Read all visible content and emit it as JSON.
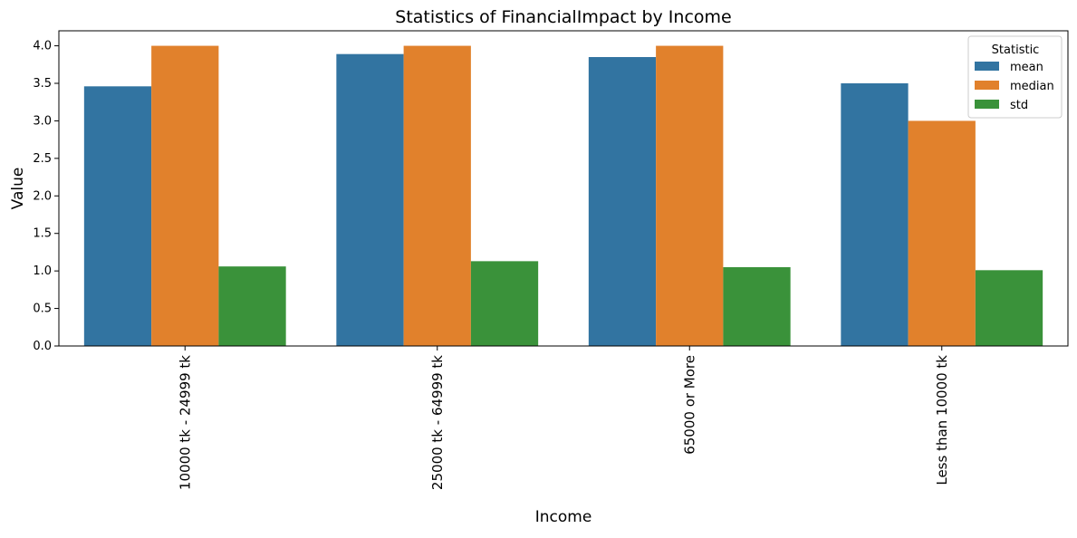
{
  "chart_data": {
    "type": "bar",
    "title": "Statistics of FinancialImpact by Income",
    "xlabel": "Income",
    "ylabel": "Value",
    "categories": [
      "10000 tk - 24999 tk",
      "25000 tk - 64999 tk",
      "65000 or More",
      "Less than 10000 tk"
    ],
    "series": [
      {
        "name": "mean",
        "color": "#3274a1",
        "values": [
          3.46,
          3.89,
          3.85,
          3.5
        ]
      },
      {
        "name": "median",
        "color": "#e1812c",
        "values": [
          4.0,
          4.0,
          4.0,
          3.0
        ]
      },
      {
        "name": "std",
        "color": "#3a923a",
        "values": [
          1.06,
          1.13,
          1.05,
          1.01
        ]
      }
    ],
    "ylim": [
      0,
      4.2
    ],
    "yticks": [
      0.0,
      0.5,
      1.0,
      1.5,
      2.0,
      2.5,
      3.0,
      3.5,
      4.0
    ],
    "legend": {
      "title": "Statistic",
      "placement": "top-right"
    },
    "grid": false
  }
}
